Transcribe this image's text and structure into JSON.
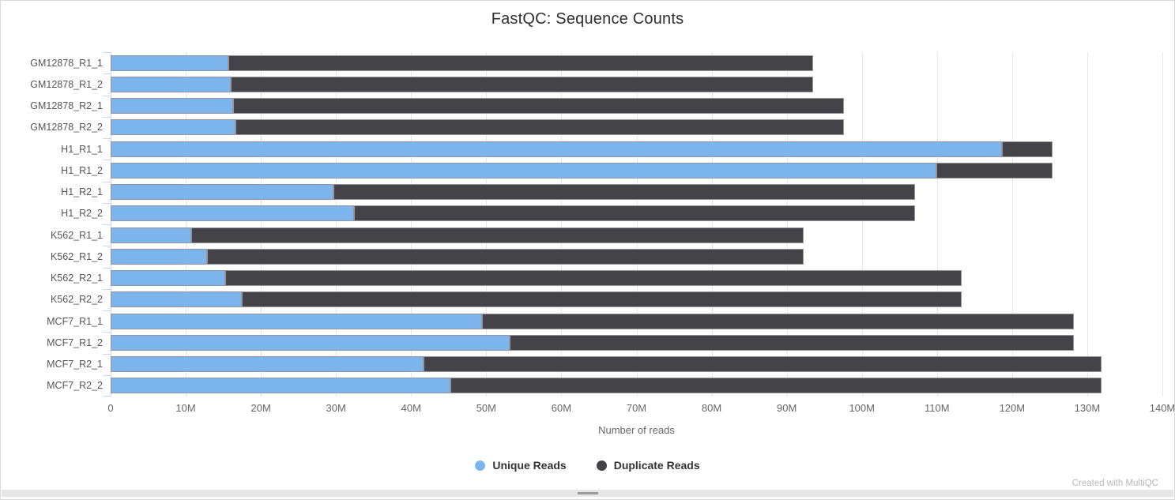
{
  "chart_data": {
    "type": "bar",
    "orientation": "horizontal",
    "stacked": true,
    "title": "FastQC: Sequence Counts",
    "xlabel": "Number of reads",
    "xlim_millions": [
      0,
      140
    ],
    "x_tick_labels": [
      "0",
      "10M",
      "20M",
      "30M",
      "40M",
      "50M",
      "60M",
      "70M",
      "80M",
      "90M",
      "100M",
      "110M",
      "120M",
      "130M",
      "140M"
    ],
    "grid": true,
    "legend_position": "bottom",
    "categories": [
      "GM12878_R1_1",
      "GM12878_R1_2",
      "GM12878_R2_1",
      "GM12878_R2_2",
      "H1_R1_1",
      "H1_R1_2",
      "H1_R2_1",
      "H1_R2_2",
      "K562_R1_1",
      "K562_R1_2",
      "K562_R2_1",
      "K562_R2_2",
      "MCF7_R1_1",
      "MCF7_R1_2",
      "MCF7_R2_1",
      "MCF7_R2_2"
    ],
    "series": [
      {
        "name": "Unique Reads",
        "color": "#7cb5ec",
        "values_millions": [
          15.7,
          16.0,
          16.3,
          16.6,
          118.6,
          109.9,
          29.7,
          32.4,
          10.7,
          12.8,
          15.2,
          17.5,
          49.4,
          53.1,
          41.7,
          45.2
        ]
      },
      {
        "name": "Duplicate Reads",
        "color": "#434348",
        "values_millions": [
          77.8,
          77.5,
          81.3,
          81.0,
          6.8,
          15.5,
          77.4,
          74.7,
          81.5,
          79.4,
          98.1,
          95.8,
          78.8,
          75.1,
          90.2,
          86.7
        ]
      }
    ]
  },
  "footer": {
    "credit": "Created with MultiQC"
  }
}
